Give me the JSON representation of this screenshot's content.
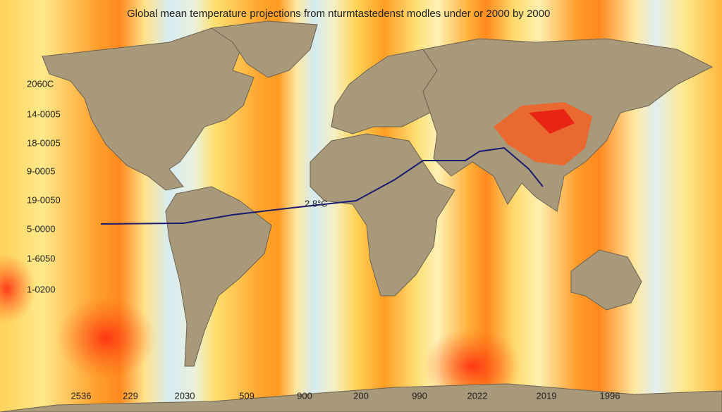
{
  "header": {
    "title": "Global mean temperature projections from nturmtastedenst modles under or 2000 by 2000"
  },
  "annotation": "2.8°C",
  "left_labels": [
    "2060C",
    "14-0005",
    "18-0005",
    "9-0005",
    "19-0050",
    "5-0000",
    "1-6050",
    "1-0200"
  ],
  "bottom_labels": [
    "2536",
    "229",
    "2030",
    "509",
    "900",
    "200",
    "990",
    "2022",
    "2019",
    "1996"
  ]
}
